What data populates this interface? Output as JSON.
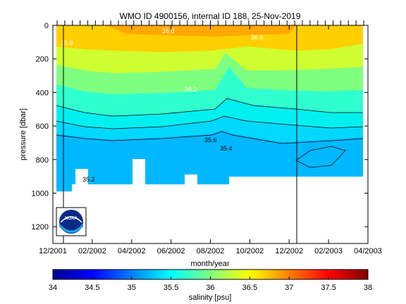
{
  "chart_data": {
    "type": "contour",
    "title": "WMO ID 4900156, internal ID 188, 25-Nov-2019",
    "xlabel": "month/year",
    "ylabel": "pressure [dbar]",
    "x_ticks": [
      "12/2001",
      "02/2002",
      "04/2002",
      "06/2002",
      "08/2002",
      "10/2002",
      "12/2002",
      "02/2003",
      "04/2003"
    ],
    "y_ticks": [
      "0",
      "200",
      "400",
      "600",
      "800",
      "1000",
      "1200"
    ],
    "ylim": [
      1300,
      0
    ],
    "colorbar": {
      "label": "salinity [psu]",
      "range": [
        34,
        38
      ],
      "ticks": [
        "34",
        "34.5",
        "35",
        "35.5",
        "36",
        "36.5",
        "37",
        "37.5",
        "38"
      ],
      "colormap": "jet"
    },
    "contour_labels": [
      "35.2",
      "35.4",
      "35.6",
      "35.8",
      "36.2",
      "36.6",
      "36.8"
    ],
    "salinity_layers": [
      {
        "depth_range": [
          0,
          150
        ],
        "salinity": 36.7
      },
      {
        "depth_range": [
          150,
          300
        ],
        "salinity": 36.4
      },
      {
        "depth_range": [
          300,
          420
        ],
        "salinity": 36.1
      },
      {
        "depth_range": [
          420,
          560
        ],
        "salinity": 35.8
      },
      {
        "depth_range": [
          560,
          680
        ],
        "salinity": 35.6
      },
      {
        "depth_range": [
          680,
          750
        ],
        "salinity": 35.45
      },
      {
        "depth_range": [
          750,
          950
        ],
        "salinity": 35.3
      }
    ],
    "vertical_lines": [
      "12/2001",
      "12/2002"
    ]
  },
  "logo": {
    "text": "NOAA"
  }
}
